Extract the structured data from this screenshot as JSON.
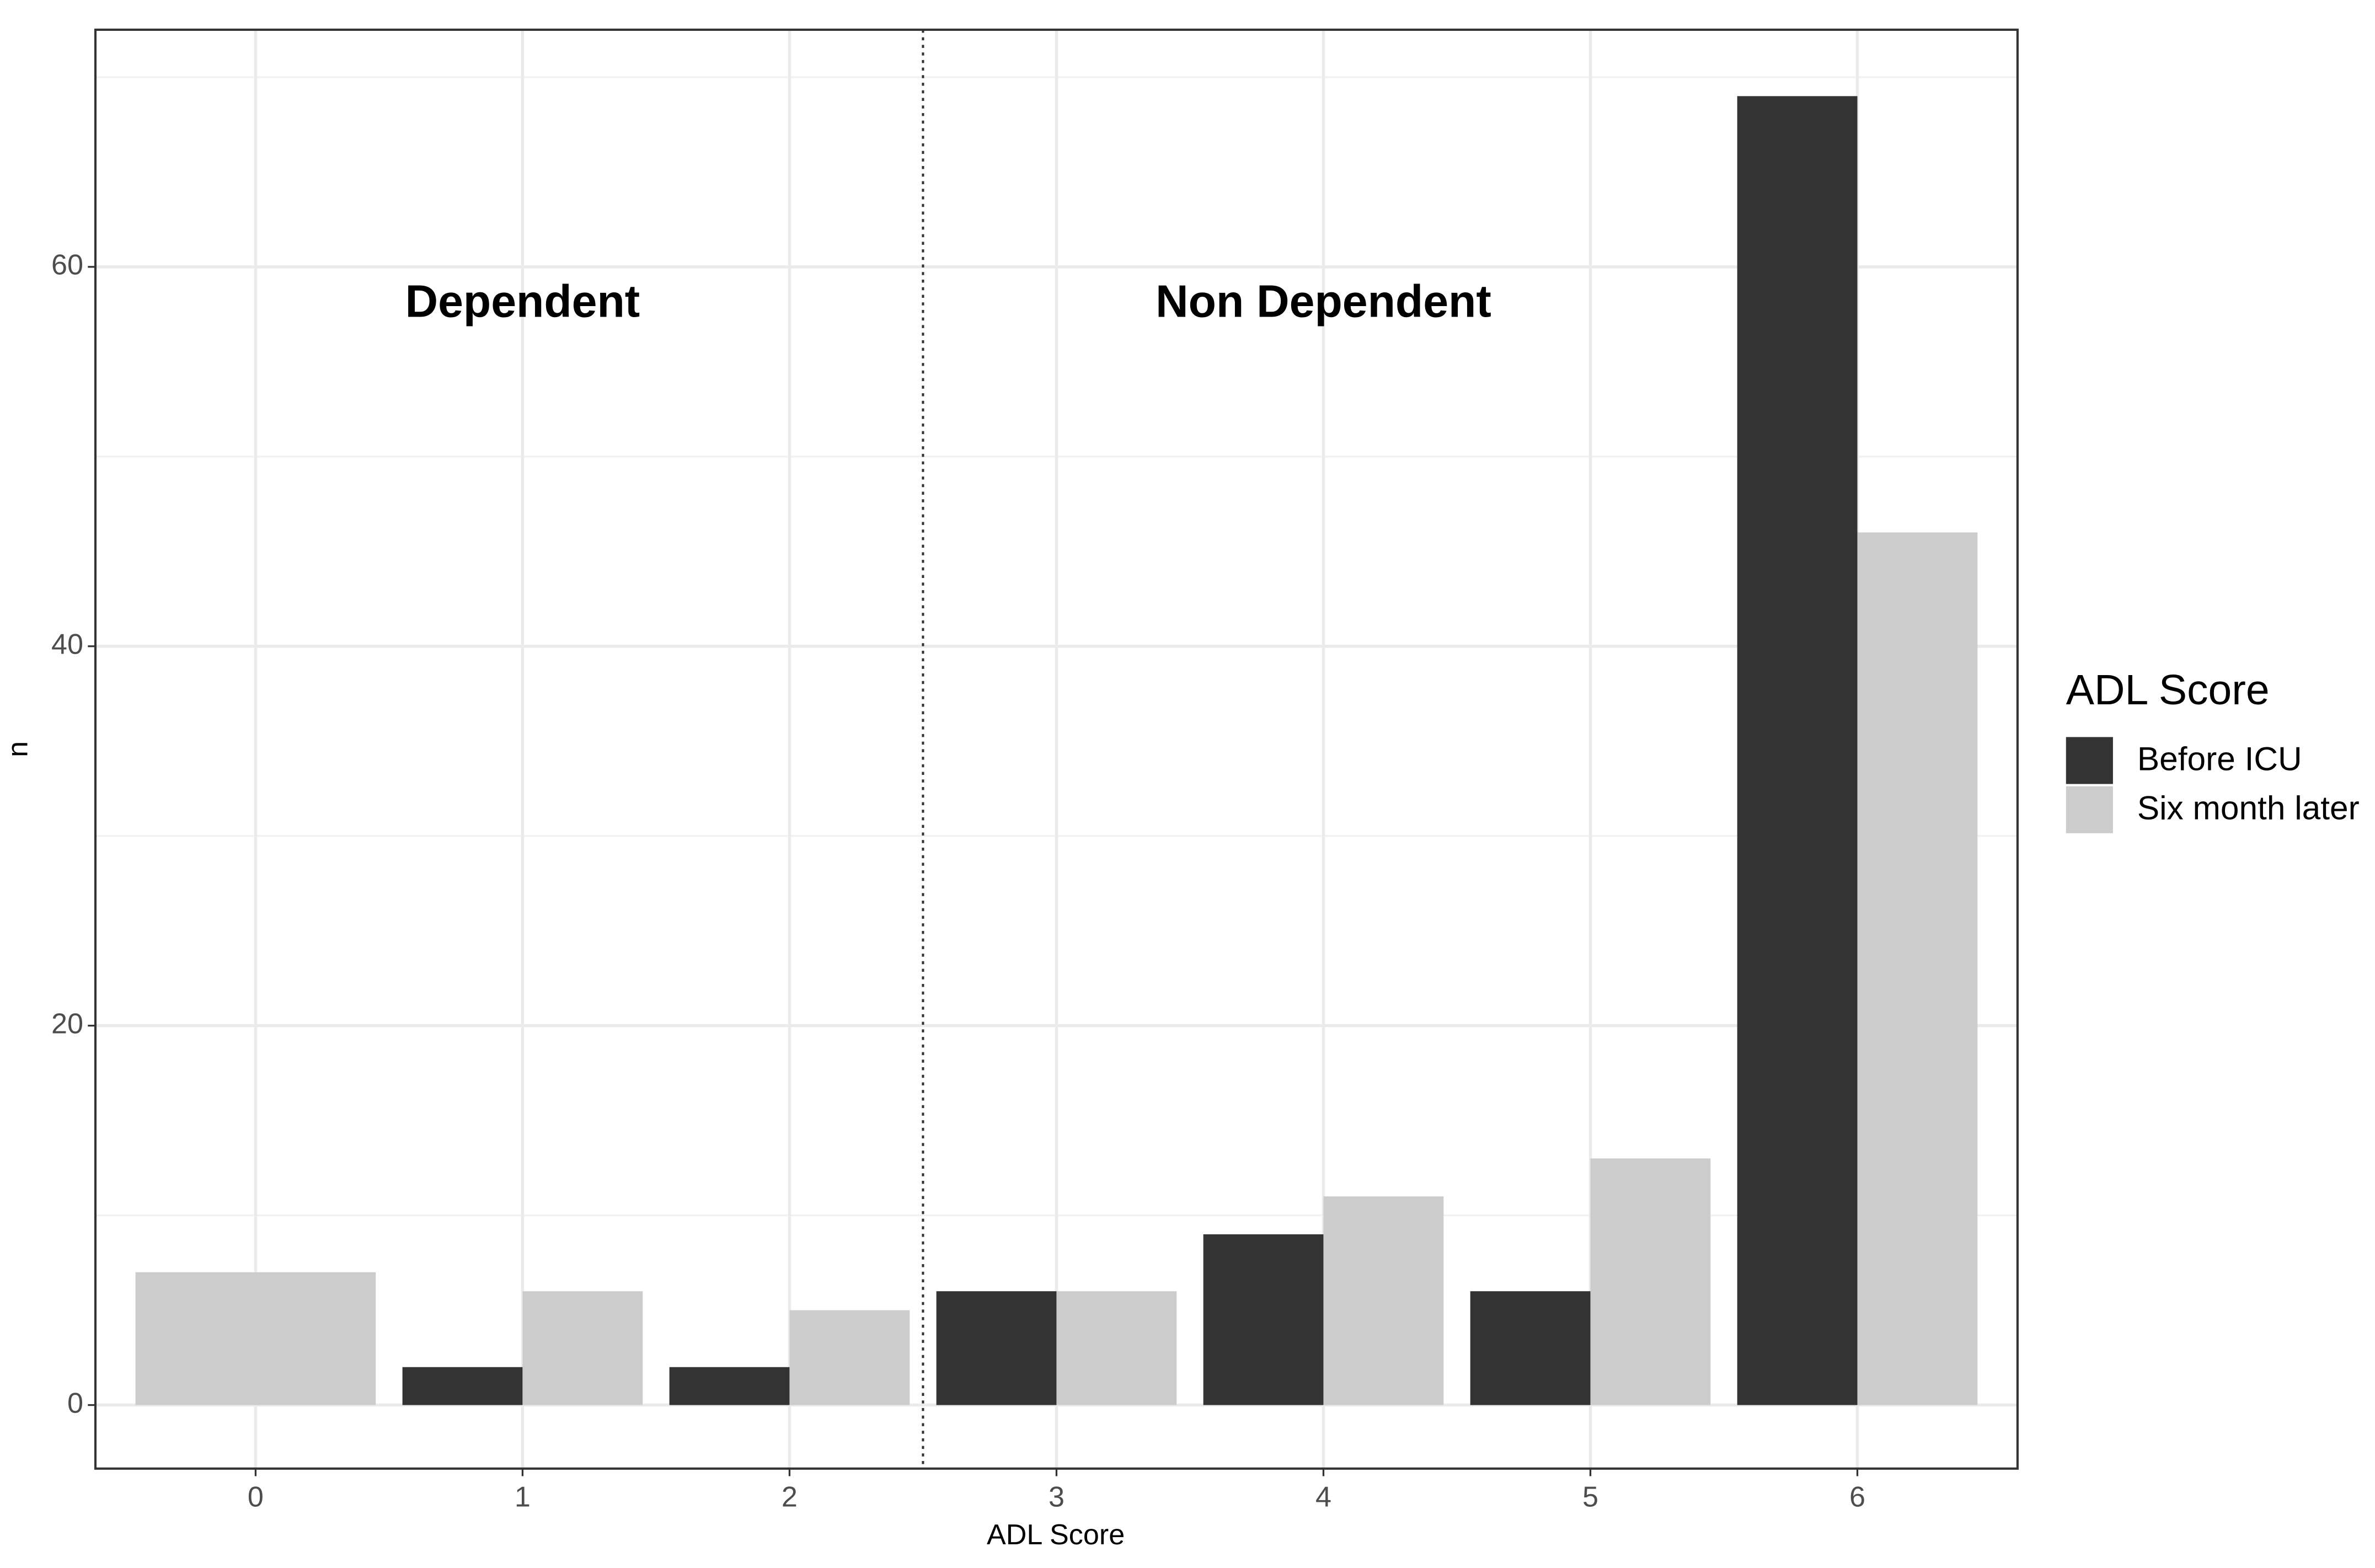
{
  "chart_data": {
    "type": "bar",
    "x_label": "ADL Score",
    "y_label": "n",
    "categories": [
      "0",
      "1",
      "2",
      "3",
      "4",
      "5",
      "6"
    ],
    "series": [
      {
        "name": "Before ICU",
        "color": "#333333",
        "values": [
          null,
          2,
          2,
          6,
          9,
          6,
          69
        ]
      },
      {
        "name": "Six month later",
        "color": "#cccccc",
        "values": [
          7,
          6,
          5,
          6,
          11,
          13,
          46
        ]
      }
    ],
    "ylim": [
      -3.35,
      72.5
    ],
    "yticks": [
      0,
      20,
      40,
      60
    ],
    "minor_yticks": [
      10,
      30,
      50,
      70
    ],
    "grid": true,
    "legend_title": "ADL Score",
    "legend": "right",
    "vline": 2.5,
    "annotations": [
      {
        "text": "Dependent",
        "x": 1,
        "y": 58
      },
      {
        "text": "Non Dependent",
        "x": 4,
        "y": 58
      }
    ]
  }
}
